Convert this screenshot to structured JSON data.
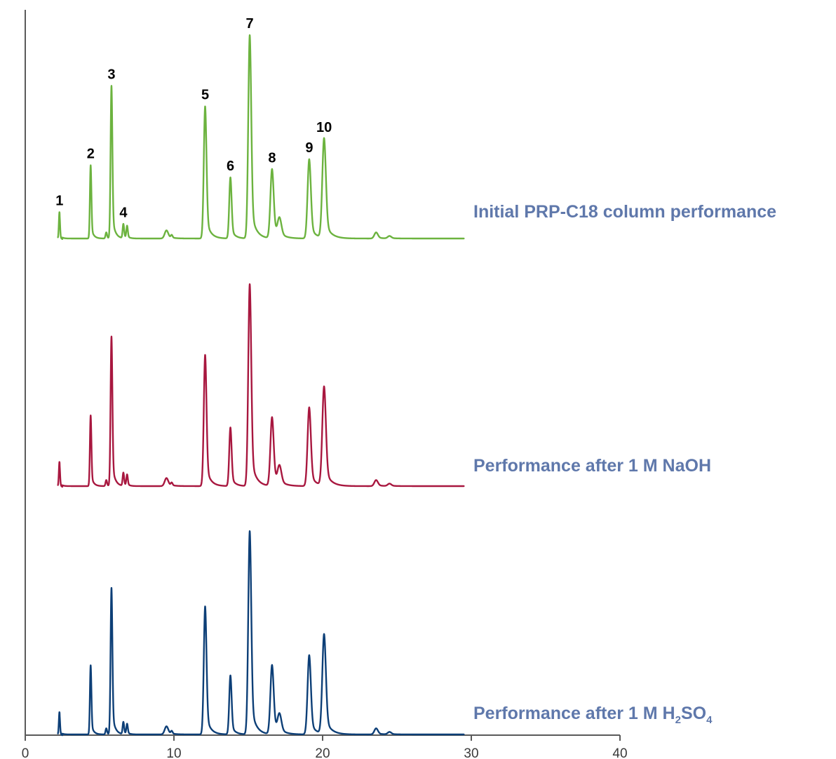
{
  "chart_data": {
    "type": "line",
    "title": "",
    "xlabel": "",
    "ylabel": "",
    "xlim": [
      0,
      40
    ],
    "x_ticks": [
      0,
      10,
      20,
      30,
      40
    ],
    "x_tick_labels": [
      "0",
      "10",
      "20",
      "30",
      "40"
    ],
    "grid": false,
    "y_axis_ticks": false,
    "stacked_offset_traces": true,
    "peaks": [
      {
        "id": "1",
        "time": 2.3,
        "width": 0.04
      },
      {
        "id": "2",
        "time": 4.4,
        "width": 0.05
      },
      {
        "id": "3",
        "time": 5.8,
        "width": 0.06
      },
      {
        "id": "4a",
        "time": 6.6,
        "width": 0.05
      },
      {
        "id": "4b",
        "time": 6.85,
        "width": 0.05
      },
      {
        "id": "5",
        "time": 12.1,
        "width": 0.09
      },
      {
        "id": "6",
        "time": 13.8,
        "width": 0.08
      },
      {
        "id": "7",
        "time": 15.1,
        "width": 0.1
      },
      {
        "id": "8",
        "time": 16.6,
        "width": 0.11
      },
      {
        "id": "8b",
        "time": 17.1,
        "width": 0.13
      },
      {
        "id": "9",
        "time": 19.1,
        "width": 0.11
      },
      {
        "id": "10",
        "time": 20.1,
        "width": 0.12
      },
      {
        "id": "i1",
        "time": 5.45,
        "width": 0.05
      },
      {
        "id": "i2",
        "time": 9.5,
        "width": 0.12
      },
      {
        "id": "i3",
        "time": 9.85,
        "width": 0.06
      },
      {
        "id": "i4",
        "time": 23.6,
        "width": 0.12
      },
      {
        "id": "i5",
        "time": 24.5,
        "width": 0.12
      }
    ],
    "peak_labels": [
      {
        "text": "1",
        "peak": "1"
      },
      {
        "text": "2",
        "peak": "2"
      },
      {
        "text": "3",
        "peak": "3"
      },
      {
        "text": "4",
        "peak": "4a"
      },
      {
        "text": "5",
        "peak": "5"
      },
      {
        "text": "6",
        "peak": "6"
      },
      {
        "text": "7",
        "peak": "7"
      },
      {
        "text": "8",
        "peak": "8"
      },
      {
        "text": "9",
        "peak": "9"
      },
      {
        "text": "10",
        "peak": "10"
      }
    ],
    "series": [
      {
        "name": "Initial PRP-C18 column performance",
        "color": "#6cb33f",
        "heights": {
          "1": 0.13,
          "2": 0.36,
          "3": 0.75,
          "4a": 0.07,
          "4b": 0.06,
          "5": 0.65,
          "6": 0.3,
          "7": 1.0,
          "8": 0.34,
          "8b": 0.09,
          "9": 0.39,
          "10": 0.49,
          "i1": 0.03,
          "i2": 0.04,
          "i3": 0.015,
          "i4": 0.03,
          "i5": 0.012
        }
      },
      {
        "name": "Performance after 1 M NaOH",
        "color": "#a8173f",
        "heights": {
          "1": 0.12,
          "2": 0.35,
          "3": 0.74,
          "4a": 0.065,
          "4b": 0.055,
          "5": 0.65,
          "6": 0.29,
          "7": 1.0,
          "8": 0.34,
          "8b": 0.09,
          "9": 0.39,
          "10": 0.49,
          "i1": 0.03,
          "i2": 0.04,
          "i3": 0.015,
          "i4": 0.03,
          "i5": 0.012
        }
      },
      {
        "name": "Performance after 1 M H",
        "name_subscript": "2",
        "name_suffix": "SO",
        "name_suffix_subscript": "4",
        "color": "#0d3f77",
        "heights": {
          "1": 0.11,
          "2": 0.34,
          "3": 0.72,
          "4a": 0.06,
          "4b": 0.05,
          "5": 0.63,
          "6": 0.29,
          "7": 1.0,
          "8": 0.34,
          "8b": 0.09,
          "9": 0.39,
          "10": 0.49,
          "i1": 0.03,
          "i2": 0.04,
          "i3": 0.015,
          "i4": 0.03,
          "i5": 0.012
        }
      }
    ]
  }
}
